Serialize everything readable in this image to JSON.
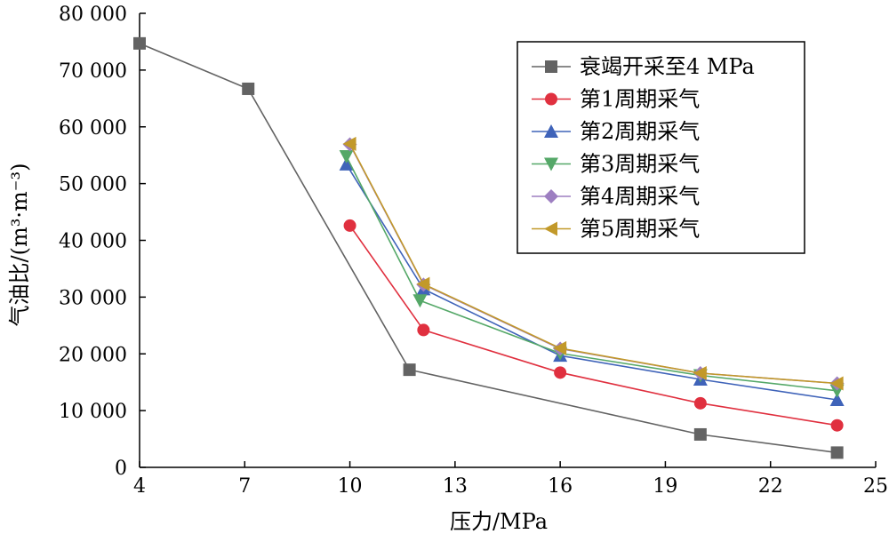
{
  "chart_data": {
    "type": "line",
    "xlabel": "压力/MPa",
    "ylabel": "气油比/(m³·m⁻³)",
    "xlim": [
      4,
      25
    ],
    "ylim": [
      0,
      80000
    ],
    "x_ticks": [
      4,
      7,
      10,
      13,
      16,
      19,
      22,
      25
    ],
    "y_ticks": [
      0,
      10000,
      20000,
      30000,
      40000,
      50000,
      60000,
      70000,
      80000
    ],
    "x_tick_labels": [
      "4",
      "7",
      "10",
      "13",
      "16",
      "19",
      "22",
      "25"
    ],
    "y_tick_labels": [
      "0",
      "10 000",
      "20 000",
      "30 000",
      "40 000",
      "50 000",
      "60 000",
      "70 000",
      "80 000"
    ],
    "grid": false,
    "legend_position": "top-right",
    "series": [
      {
        "name": "衰竭开采至4 MPa",
        "color": "#636363",
        "marker": "square",
        "points": [
          [
            4,
            74700
          ],
          [
            7.1,
            66700
          ],
          [
            11.7,
            17200
          ],
          [
            20.0,
            5800
          ],
          [
            23.9,
            2600
          ]
        ]
      },
      {
        "name": "第1周期采气",
        "color": "#e0303f",
        "marker": "circle",
        "points": [
          [
            10.0,
            42600
          ],
          [
            12.1,
            24200
          ],
          [
            16.0,
            16700
          ],
          [
            20.0,
            11300
          ],
          [
            23.9,
            7400
          ]
        ]
      },
      {
        "name": "第2周期采气",
        "color": "#3f63b9",
        "marker": "triangle-up",
        "points": [
          [
            9.9,
            53400
          ],
          [
            12.1,
            31400
          ],
          [
            16.0,
            19700
          ],
          [
            20.0,
            15500
          ],
          [
            23.9,
            11900
          ]
        ]
      },
      {
        "name": "第3周期采气",
        "color": "#55a868",
        "marker": "triangle-down",
        "points": [
          [
            9.9,
            54800
          ],
          [
            12.0,
            29400
          ],
          [
            16.0,
            20100
          ],
          [
            20.0,
            16200
          ],
          [
            23.9,
            13500
          ]
        ]
      },
      {
        "name": "第4周期采气",
        "color": "#9d7fc1",
        "marker": "diamond",
        "points": [
          [
            10.0,
            56900
          ],
          [
            12.1,
            32200
          ],
          [
            16.0,
            20900
          ],
          [
            20.0,
            16600
          ],
          [
            23.9,
            14800
          ]
        ]
      },
      {
        "name": "第5周期采气",
        "color": "#c2992a",
        "marker": "triangle-left",
        "points": [
          [
            10.0,
            57000
          ],
          [
            12.1,
            32300
          ],
          [
            16.0,
            21000
          ],
          [
            20.0,
            16600
          ],
          [
            23.9,
            14800
          ]
        ]
      }
    ]
  }
}
